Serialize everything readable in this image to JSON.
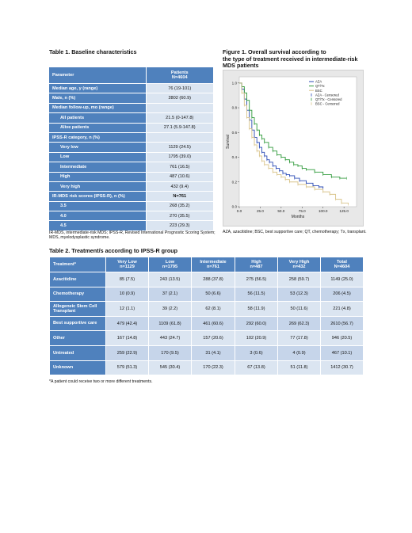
{
  "table1": {
    "title": "Table 1. Baseline characteristics",
    "header": {
      "parameter": "Parameter",
      "patients": "Patients",
      "n": "N=4604"
    },
    "rows": [
      {
        "label": "Median age, y (range)",
        "value": "76 (19-101)"
      },
      {
        "label": "Male, n (%)",
        "value": "2802 (60.9)"
      },
      {
        "label": "Median follow-up, mo (range)",
        "value": ""
      },
      {
        "label": "All patients",
        "value": "21.5 (0-147.8)"
      },
      {
        "label": "Alive patients",
        "value": "27.1 (5.9-147.8)"
      },
      {
        "label": "IPSS-R category, n (%)",
        "value": ""
      },
      {
        "label": "Very low",
        "value": "1129 (24.5)"
      },
      {
        "label": "Low",
        "value": "1795 (39.0)"
      },
      {
        "label": "Intermediate",
        "value": "761 (16.5)"
      },
      {
        "label": "High",
        "value": "487 (10.6)"
      },
      {
        "label": "Very high",
        "value": "432 (9.4)"
      },
      {
        "label": "IR-MDS risk scores (IPSS-R), n (%)",
        "value": "N=761"
      },
      {
        "label": "3.5",
        "value": "268 (35.2)"
      },
      {
        "label": "4.0",
        "value": "270 (35.5)"
      },
      {
        "label": "4.5",
        "value": "223 (29.3)"
      }
    ],
    "footnote": "IR-MDS, intermediate-risk MDS; IPSS-R, Revised International Prognostic Scoring System; MDS, myelodysplastic syndrome."
  },
  "figure1": {
    "title_line1": "Figure 1. Overall survival according to",
    "title_line2": "the type of treatment received in intermediate-risk",
    "title_line3": "MDS patients",
    "footnote": "AZA, azacitidine; BSC, best supportive care; QT, chemotherapy; Tx, transplant."
  },
  "chart_data": {
    "type": "line",
    "xlabel": "Months",
    "ylabel": "Survival",
    "xlim": [
      0,
      140
    ],
    "ylim": [
      0,
      1.05
    ],
    "xticks": [
      "0.0",
      "25.0",
      "50.0",
      "75.0",
      "100.0",
      "125.0"
    ],
    "yticks": [
      "0.0",
      "0.2",
      "0.4",
      "0.6",
      "0.8",
      "1.0"
    ],
    "grid": false,
    "legend_position": "top-right",
    "legend": [
      "AZA",
      "QT/Tx",
      "BSC",
      "AZA - Censored",
      "QT/Tx - Censored",
      "BSC - Censored"
    ],
    "colors": {
      "aza": "#2b4bb5",
      "qttx": "#2f9a3a",
      "bsc": "#d9c48a"
    },
    "series": [
      {
        "name": "AZA",
        "x": [
          0,
          3,
          6,
          9,
          12,
          15,
          18,
          21,
          24,
          27,
          30,
          33,
          36,
          40,
          44,
          48,
          52,
          56,
          60,
          66,
          72,
          80,
          88,
          95,
          100
        ],
        "y": [
          1.0,
          0.95,
          0.87,
          0.78,
          0.7,
          0.62,
          0.56,
          0.52,
          0.48,
          0.44,
          0.41,
          0.38,
          0.36,
          0.33,
          0.31,
          0.29,
          0.27,
          0.26,
          0.25,
          0.23,
          0.21,
          0.19,
          0.17,
          0.16,
          0.15
        ]
      },
      {
        "name": "QT/Tx",
        "x": [
          0,
          3,
          6,
          9,
          12,
          15,
          18,
          21,
          24,
          27,
          30,
          35,
          40,
          45,
          50,
          55,
          60,
          65,
          70,
          75,
          80,
          90,
          100,
          110,
          120,
          128
        ],
        "y": [
          1.0,
          0.97,
          0.92,
          0.86,
          0.78,
          0.72,
          0.67,
          0.62,
          0.58,
          0.55,
          0.52,
          0.48,
          0.45,
          0.42,
          0.4,
          0.38,
          0.36,
          0.34,
          0.33,
          0.31,
          0.3,
          0.28,
          0.26,
          0.24,
          0.23,
          0.23
        ]
      },
      {
        "name": "BSC",
        "x": [
          0,
          3,
          6,
          9,
          12,
          15,
          18,
          21,
          24,
          27,
          30,
          35,
          40,
          45,
          50,
          55,
          60,
          70,
          80,
          90,
          100,
          108,
          115,
          122,
          130
        ],
        "y": [
          1.0,
          0.92,
          0.82,
          0.72,
          0.63,
          0.56,
          0.5,
          0.45,
          0.41,
          0.37,
          0.34,
          0.31,
          0.28,
          0.26,
          0.24,
          0.22,
          0.2,
          0.18,
          0.16,
          0.14,
          0.12,
          0.1,
          0.06,
          0.03,
          0.02
        ]
      }
    ]
  },
  "table2": {
    "title": "Table 2. Treatment/s according to IPSS-R group",
    "headers": [
      {
        "line1": "Treatment*",
        "line2": ""
      },
      {
        "line1": "Very Low",
        "line2": "n=1129"
      },
      {
        "line1": "Low",
        "line2": "n=1795"
      },
      {
        "line1": "Intermediate",
        "line2": "n=761"
      },
      {
        "line1": "High",
        "line2": "n=487"
      },
      {
        "line1": "Very High",
        "line2": "n=432"
      },
      {
        "line1": "Total",
        "line2": "N=4604"
      }
    ],
    "rows": [
      {
        "label": "Azacitidine",
        "cells": [
          "85 (7.5)",
          "243 (13.5)",
          "288 (37.8)",
          "275 (56.5)",
          "258 (59.7)",
          "1149 (25.0)"
        ]
      },
      {
        "label": "Chemotherapy",
        "cells": [
          "10 (0.9)",
          "37 (2.1)",
          "50 (6.6)",
          "56 (11.5)",
          "53 (12.3)",
          "206 (4.5)"
        ]
      },
      {
        "label": "Allogeneic Stem Cell Transplant",
        "cells": [
          "12 (1.1)",
          "39 (2.2)",
          "62 (8.1)",
          "58 (11.9)",
          "50 (11.6)",
          "221 (4.8)"
        ]
      },
      {
        "label": "Best supportive care",
        "cells": [
          "479 (42.4)",
          "1109 (61.8)",
          "461 (60.6)",
          "292 (60.0)",
          "269 (62.3)",
          "2610 (56.7)"
        ]
      },
      {
        "label": "Other",
        "cells": [
          "167 (14.8)",
          "443 (24.7)",
          "157 (20.6)",
          "102 (20.9)",
          "77 (17.8)",
          "946 (20.5)"
        ]
      },
      {
        "label": "Untreated",
        "cells": [
          "259 (22.9)",
          "170 (9.5)",
          "31 (4.1)",
          "3 (0.6)",
          "4 (0.9)",
          "467 (10.1)"
        ]
      },
      {
        "label": "Unknown",
        "cells": [
          "579 (51.3)",
          "545 (30.4)",
          "170 (22.3)",
          "67 (13.8)",
          "51 (11.8)",
          "1412 (30.7)"
        ]
      }
    ],
    "footnote": "*A patient could receive two or more different treatments."
  }
}
